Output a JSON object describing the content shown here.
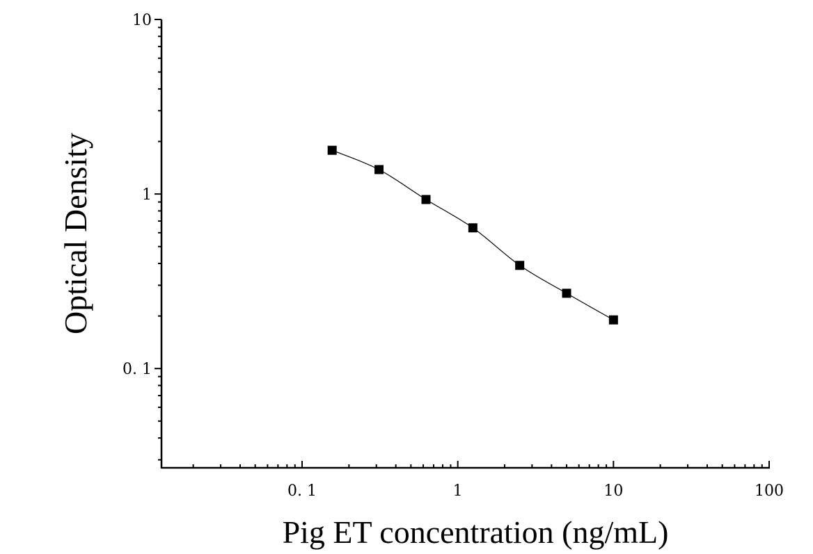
{
  "chart_data": {
    "type": "scatter",
    "xlabel": "Pig ET concentration (ng/mL)",
    "ylabel": "Optical Density",
    "xscale": "log",
    "yscale": "log",
    "xlim": [
      0.0125,
      100
    ],
    "ylim": [
      0.027,
      10
    ],
    "x_ticks": [
      {
        "value": 0.1,
        "label": "0. 1"
      },
      {
        "value": 1,
        "label": "1"
      },
      {
        "value": 10,
        "label": "10"
      },
      {
        "value": 100,
        "label": "100"
      }
    ],
    "y_ticks": [
      {
        "value": 0.1,
        "label": "0. 1"
      },
      {
        "value": 1,
        "label": "1"
      },
      {
        "value": 10,
        "label": "10"
      }
    ],
    "series": [
      {
        "marker": "square",
        "fit": "smooth curve",
        "color": "#000000",
        "x": [
          0.156,
          0.312,
          0.625,
          1.25,
          2.5,
          5,
          10
        ],
        "y": [
          1.78,
          1.38,
          0.93,
          0.64,
          0.39,
          0.27,
          0.19
        ]
      }
    ],
    "grid": false,
    "legend": "none"
  }
}
